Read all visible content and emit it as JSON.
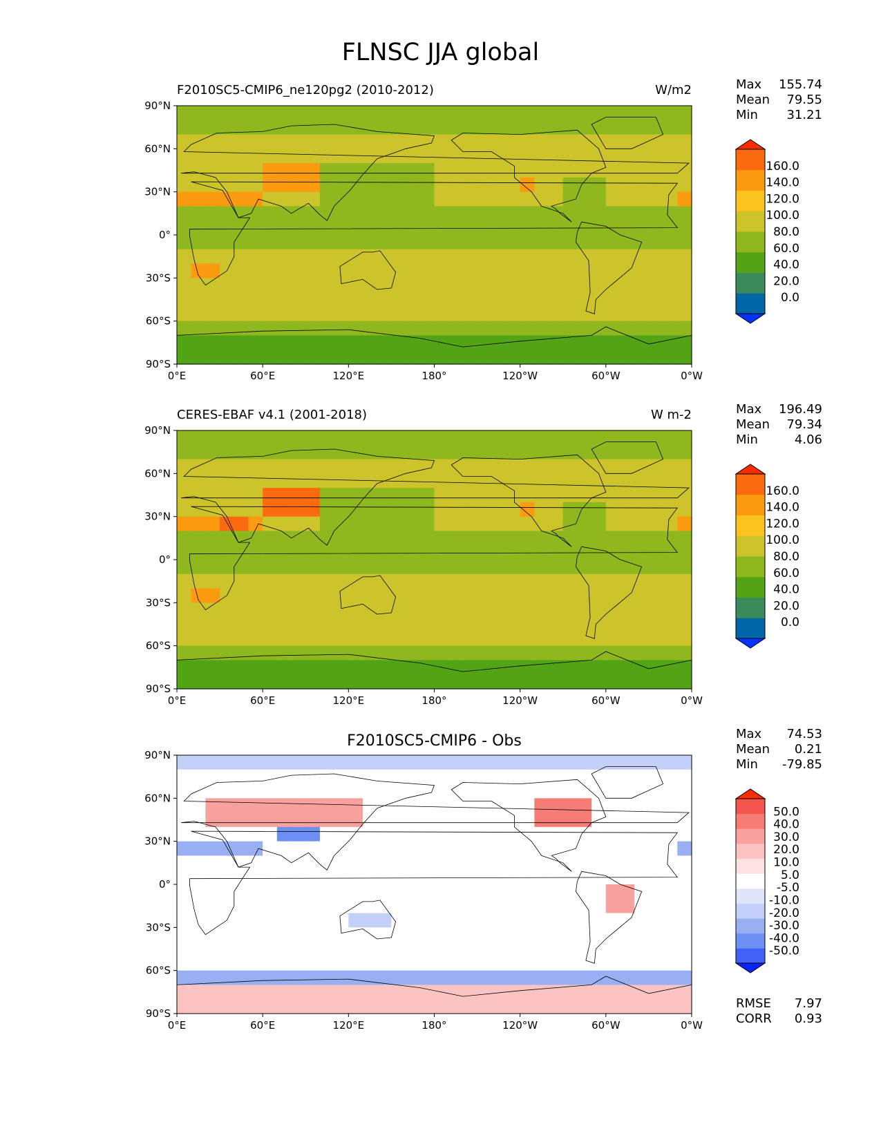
{
  "figure": {
    "title": "FLNSC JJA global"
  },
  "colors": {
    "abs_levels": [
      "#0033ff",
      "#0067a6",
      "#3b8a5c",
      "#52a316",
      "#8fb81f",
      "#ccc42a",
      "#fcc21d",
      "#fc9a10",
      "#fa6a0f",
      "#fa2c04"
    ],
    "diff_levels": [
      "#0a24ff",
      "#3f61f5",
      "#6d8ef2",
      "#98aff2",
      "#c4d0f7",
      "#dfe6fb",
      "#ffffff",
      "#fde2e2",
      "#fbc4c2",
      "#f8a19d",
      "#f67c75",
      "#f3544c",
      "#fa2c04"
    ],
    "land_outline": "#000000"
  },
  "panels": [
    {
      "id": "model",
      "title_left": "F2010SC5-CMIP6_ne120pg2 (2010-2012)",
      "title_center": "",
      "units": "W/m2",
      "stats": [
        {
          "label": "Max",
          "value": "155.74"
        },
        {
          "label": "Mean",
          "value": "79.55"
        },
        {
          "label": "Min",
          "value": "31.21"
        }
      ],
      "colorbar_labels": [
        "160.0",
        "140.0",
        "120.0",
        "100.0",
        "80.0",
        "60.0",
        "40.0",
        "20.0",
        "0.0"
      ]
    },
    {
      "id": "obs",
      "title_left": "CERES-EBAF v4.1 (2001-2018)",
      "title_center": "",
      "units": "W m-2",
      "stats": [
        {
          "label": "Max",
          "value": "196.49"
        },
        {
          "label": "Mean",
          "value": "79.34"
        },
        {
          "label": "Min",
          "value": "4.06"
        }
      ],
      "colorbar_labels": [
        "160.0",
        "140.0",
        "120.0",
        "100.0",
        "80.0",
        "60.0",
        "40.0",
        "20.0",
        "0.0"
      ]
    },
    {
      "id": "diff",
      "title_left": "",
      "title_center": "F2010SC5-CMIP6 - Obs",
      "units": "",
      "stats": [
        {
          "label": "Max",
          "value": "74.53"
        },
        {
          "label": "Mean",
          "value": "0.21"
        },
        {
          "label": "Min",
          "value": "-79.85"
        }
      ],
      "colorbar_labels": [
        "50.0",
        "40.0",
        "30.0",
        "20.0",
        "10.0",
        "5.0",
        "-5.0",
        "-10.0",
        "-20.0",
        "-30.0",
        "-40.0",
        "-50.0"
      ],
      "extra_stats": [
        {
          "label": "RMSE",
          "value": "7.97"
        },
        {
          "label": "CORR",
          "value": "0.93"
        }
      ]
    }
  ],
  "axes": {
    "lat_ticks": [
      "90°N",
      "60°N",
      "30°N",
      "0°",
      "30°S",
      "60°S",
      "90°S"
    ],
    "lon_ticks": [
      "0°E",
      "60°E",
      "120°E",
      "180°",
      "120°W",
      "60°W",
      "0°W"
    ]
  },
  "chart_data": [
    {
      "type": "heatmap",
      "title": "F2010SC5-CMIP6_ne120pg2 (2010-2012)",
      "units": "W/m2",
      "xlabel": "",
      "ylabel": "",
      "xlim": [
        0,
        360
      ],
      "ylim": [
        -90,
        90
      ],
      "levels": [
        0,
        20,
        40,
        60,
        80,
        100,
        120,
        140,
        160
      ],
      "stats": {
        "max": 155.74,
        "mean": 79.55,
        "min": 31.21
      }
    },
    {
      "type": "heatmap",
      "title": "CERES-EBAF v4.1 (2001-2018)",
      "units": "W m-2",
      "xlabel": "",
      "ylabel": "",
      "xlim": [
        0,
        360
      ],
      "ylim": [
        -90,
        90
      ],
      "levels": [
        0,
        20,
        40,
        60,
        80,
        100,
        120,
        140,
        160
      ],
      "stats": {
        "max": 196.49,
        "mean": 79.34,
        "min": 4.06
      }
    },
    {
      "type": "heatmap",
      "title": "F2010SC5-CMIP6 - Obs",
      "units": "",
      "xlabel": "",
      "ylabel": "",
      "xlim": [
        0,
        360
      ],
      "ylim": [
        -90,
        90
      ],
      "levels": [
        -50,
        -40,
        -30,
        -20,
        -10,
        -5,
        5,
        10,
        20,
        30,
        40,
        50
      ],
      "stats": {
        "max": 74.53,
        "mean": 0.21,
        "min": -79.85,
        "rmse": 7.97,
        "corr": 0.93
      }
    }
  ]
}
